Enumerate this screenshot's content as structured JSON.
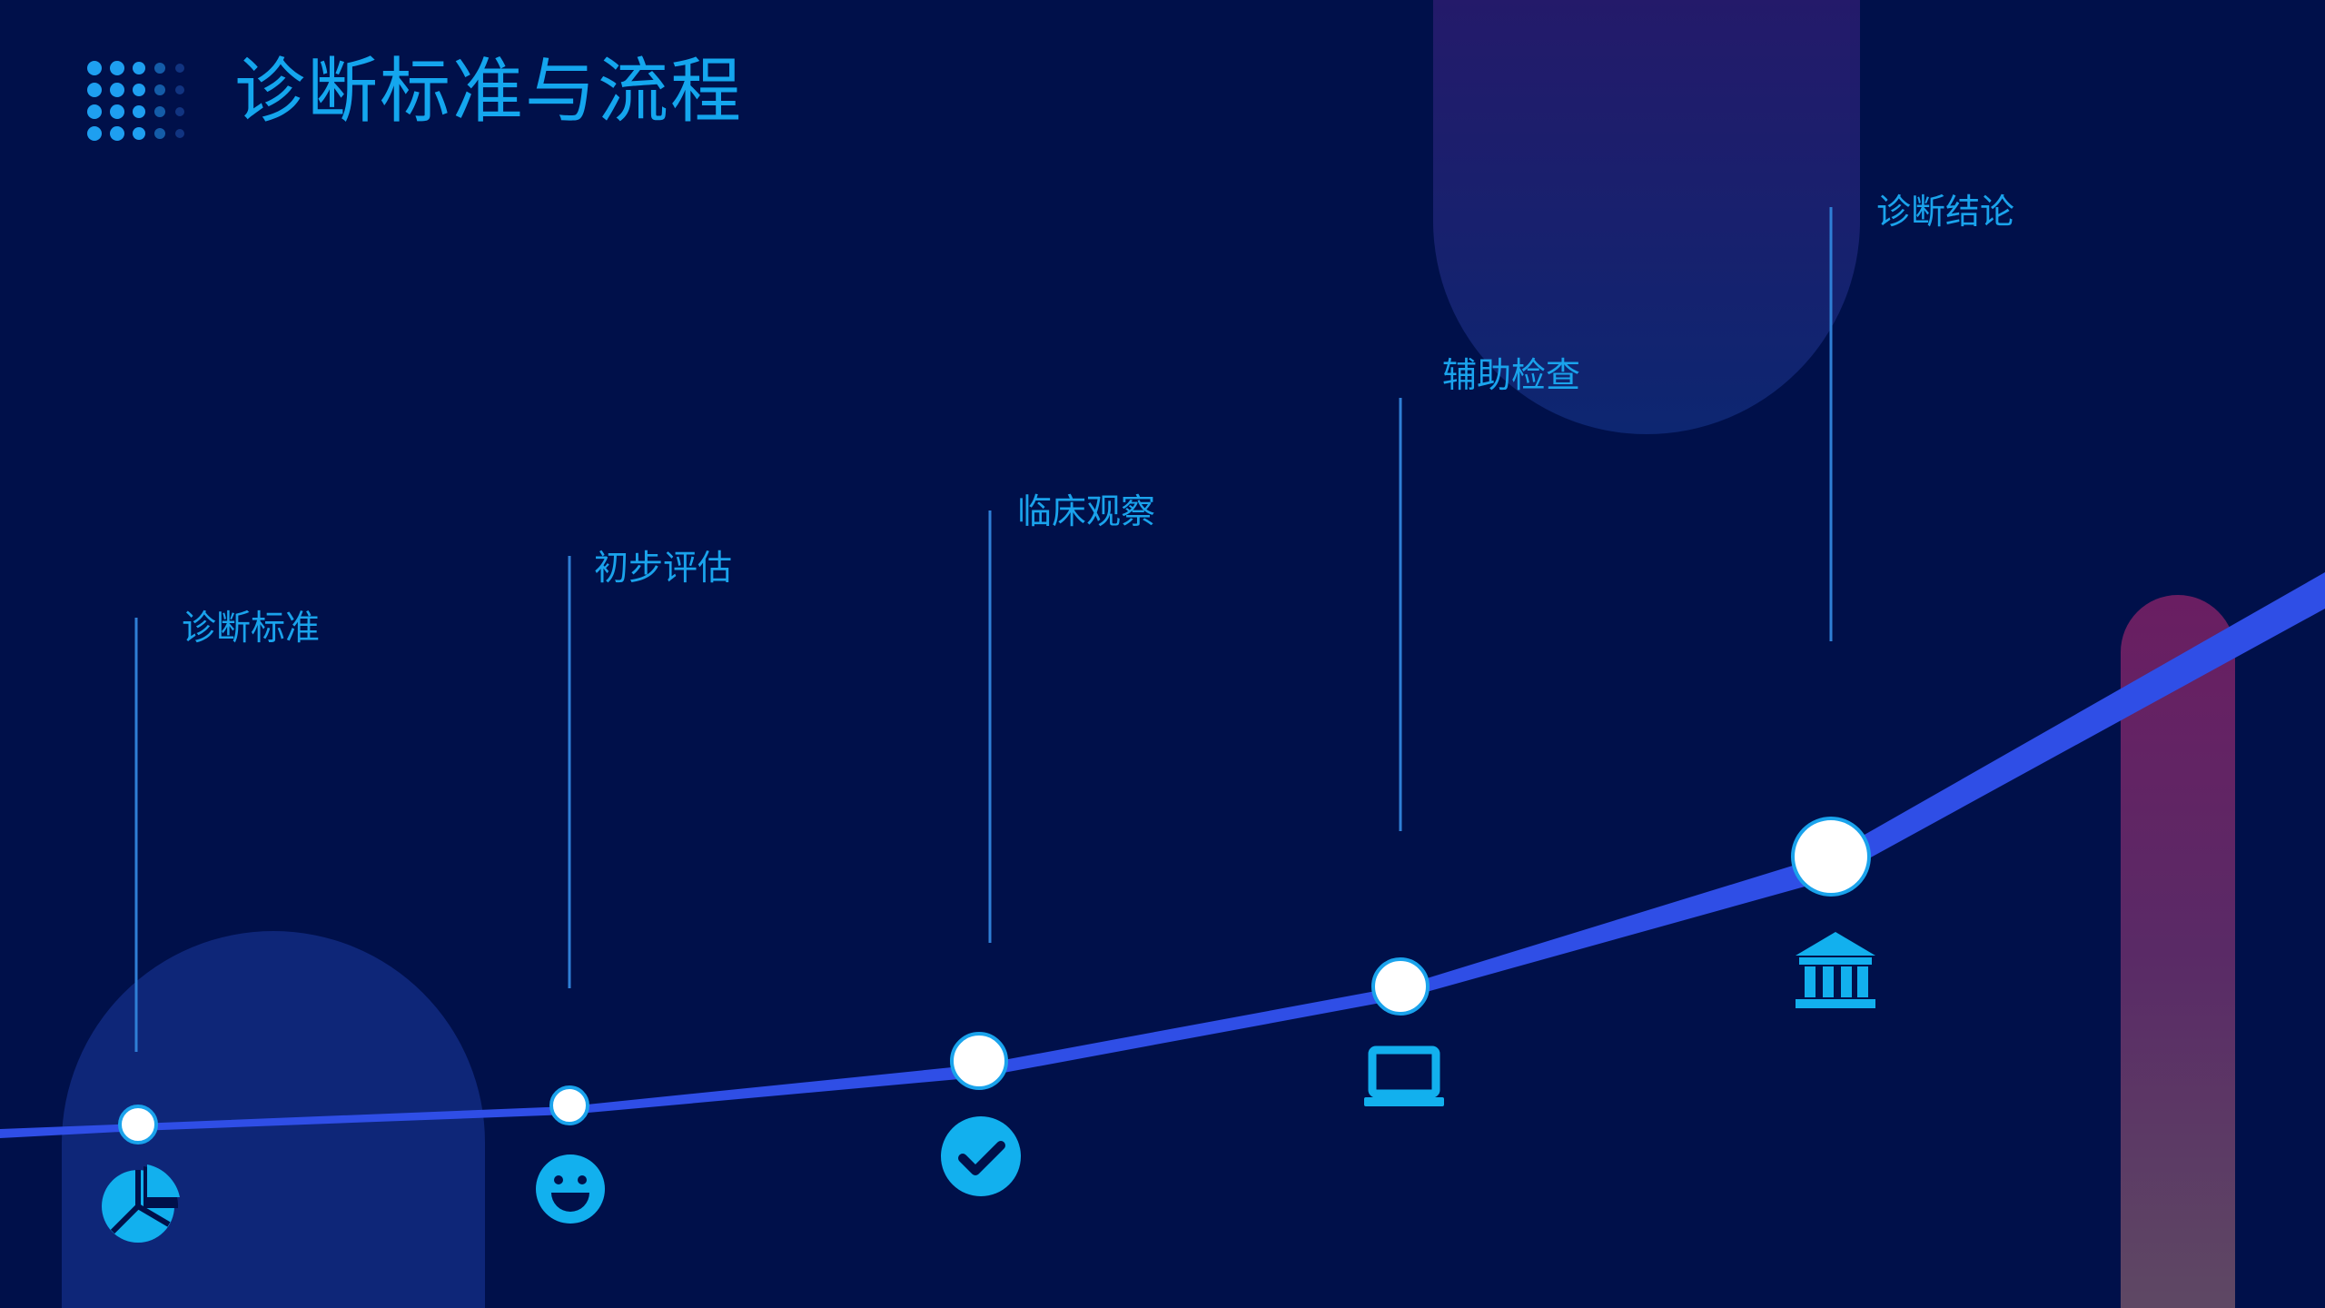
{
  "title": "诊断标准与流程",
  "colors": {
    "background": "#00104a",
    "accent": "#14a6ee",
    "curve": "#2f4ee6",
    "connector": "#2f7fd6",
    "node": "#ffffff",
    "icon": "#12b0ee"
  },
  "steps": [
    {
      "label": "诊断标准",
      "icon": "pie-chart-icon"
    },
    {
      "label": "初步评估",
      "icon": "smiley-icon"
    },
    {
      "label": "临床观察",
      "icon": "check-circle-icon"
    },
    {
      "label": "辅助检查",
      "icon": "laptop-icon"
    },
    {
      "label": "诊断结论",
      "icon": "bank-icon"
    }
  ]
}
